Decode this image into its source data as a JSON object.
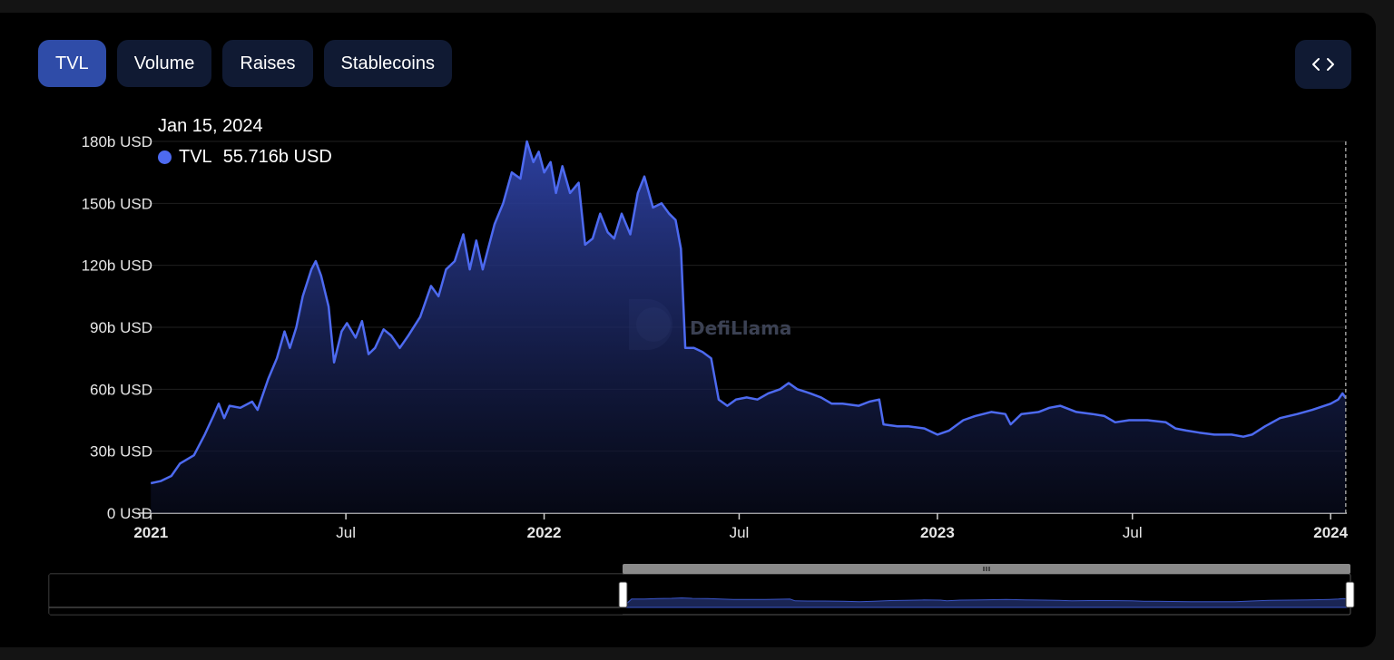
{
  "tabs": [
    {
      "label": "TVL",
      "active": true
    },
    {
      "label": "Volume",
      "active": false
    },
    {
      "label": "Raises",
      "active": false
    },
    {
      "label": "Stablecoins",
      "active": false
    }
  ],
  "embed_icon": "code-brackets-icon",
  "watermark": "DefiLlama",
  "tooltip": {
    "date": "Jan 15, 2024",
    "series": "TVL",
    "value": "55.716b USD"
  },
  "colors": {
    "line": "#4d6af0",
    "tab_active": "#2f4ca8",
    "tab_inactive": "#101a33",
    "background": "#000000"
  },
  "chart_data": {
    "type": "area",
    "series": [
      {
        "name": "TVL",
        "points": [
          [
            "2021-01-01",
            14.5
          ],
          [
            "2021-01-10",
            15.5
          ],
          [
            "2021-01-20",
            18
          ],
          [
            "2021-01-28",
            24
          ],
          [
            "2021-02-10",
            28
          ],
          [
            "2021-02-20",
            38
          ],
          [
            "2021-02-28",
            47
          ],
          [
            "2021-03-05",
            53
          ],
          [
            "2021-03-10",
            46
          ],
          [
            "2021-03-15",
            52
          ],
          [
            "2021-03-25",
            51
          ],
          [
            "2021-04-05",
            54
          ],
          [
            "2021-04-10",
            50
          ],
          [
            "2021-04-20",
            65
          ],
          [
            "2021-04-28",
            75
          ],
          [
            "2021-05-05",
            88
          ],
          [
            "2021-05-10",
            80
          ],
          [
            "2021-05-16",
            90
          ],
          [
            "2021-05-22",
            105
          ],
          [
            "2021-05-30",
            118
          ],
          [
            "2021-06-03",
            122
          ],
          [
            "2021-06-08",
            115
          ],
          [
            "2021-06-15",
            100
          ],
          [
            "2021-06-20",
            73
          ],
          [
            "2021-06-27",
            88
          ],
          [
            "2021-07-02",
            92
          ],
          [
            "2021-07-10",
            85
          ],
          [
            "2021-07-16",
            93
          ],
          [
            "2021-07-22",
            77
          ],
          [
            "2021-07-28",
            80
          ],
          [
            "2021-08-05",
            89
          ],
          [
            "2021-08-12",
            86
          ],
          [
            "2021-08-20",
            80
          ],
          [
            "2021-08-28",
            86
          ],
          [
            "2021-09-08",
            95
          ],
          [
            "2021-09-18",
            110
          ],
          [
            "2021-09-25",
            105
          ],
          [
            "2021-10-02",
            118
          ],
          [
            "2021-10-10",
            122
          ],
          [
            "2021-10-18",
            135
          ],
          [
            "2021-10-24",
            118
          ],
          [
            "2021-10-30",
            132
          ],
          [
            "2021-11-05",
            118
          ],
          [
            "2021-11-10",
            128
          ],
          [
            "2021-11-16",
            140
          ],
          [
            "2021-11-24",
            150
          ],
          [
            "2021-12-02",
            165
          ],
          [
            "2021-12-10",
            162
          ],
          [
            "2021-12-16",
            180
          ],
          [
            "2021-12-22",
            170
          ],
          [
            "2021-12-27",
            175
          ],
          [
            "2022-01-01",
            165
          ],
          [
            "2022-01-07",
            170
          ],
          [
            "2022-01-12",
            155
          ],
          [
            "2022-01-18",
            168
          ],
          [
            "2022-01-25",
            155
          ],
          [
            "2022-02-02",
            160
          ],
          [
            "2022-02-08",
            130
          ],
          [
            "2022-02-15",
            133
          ],
          [
            "2022-02-22",
            145
          ],
          [
            "2022-03-01",
            136
          ],
          [
            "2022-03-07",
            133
          ],
          [
            "2022-03-14",
            145
          ],
          [
            "2022-03-22",
            135
          ],
          [
            "2022-03-29",
            155
          ],
          [
            "2022-04-04",
            163
          ],
          [
            "2022-04-12",
            148
          ],
          [
            "2022-04-20",
            150
          ],
          [
            "2022-04-27",
            145
          ],
          [
            "2022-05-03",
            142
          ],
          [
            "2022-05-08",
            128
          ],
          [
            "2022-05-12",
            80
          ],
          [
            "2022-05-20",
            80
          ],
          [
            "2022-05-28",
            78
          ],
          [
            "2022-06-05",
            75
          ],
          [
            "2022-06-12",
            55
          ],
          [
            "2022-06-20",
            52
          ],
          [
            "2022-06-28",
            55
          ],
          [
            "2022-07-08",
            56
          ],
          [
            "2022-07-18",
            55
          ],
          [
            "2022-07-28",
            58
          ],
          [
            "2022-08-08",
            60
          ],
          [
            "2022-08-16",
            63
          ],
          [
            "2022-08-24",
            60
          ],
          [
            "2022-09-05",
            58
          ],
          [
            "2022-09-15",
            56
          ],
          [
            "2022-09-25",
            53
          ],
          [
            "2022-10-05",
            53
          ],
          [
            "2022-10-20",
            52
          ],
          [
            "2022-10-30",
            54
          ],
          [
            "2022-11-08",
            55
          ],
          [
            "2022-11-12",
            43
          ],
          [
            "2022-11-25",
            42
          ],
          [
            "2022-12-05",
            42
          ],
          [
            "2022-12-20",
            41
          ],
          [
            "2023-01-01",
            38
          ],
          [
            "2023-01-12",
            40
          ],
          [
            "2023-01-25",
            45
          ],
          [
            "2023-02-05",
            47
          ],
          [
            "2023-02-20",
            49
          ],
          [
            "2023-03-05",
            48
          ],
          [
            "2023-03-10",
            43
          ],
          [
            "2023-03-20",
            48
          ],
          [
            "2023-04-05",
            49
          ],
          [
            "2023-04-15",
            51
          ],
          [
            "2023-04-25",
            52
          ],
          [
            "2023-05-10",
            49
          ],
          [
            "2023-05-25",
            48
          ],
          [
            "2023-06-05",
            47
          ],
          [
            "2023-06-15",
            44
          ],
          [
            "2023-06-28",
            45
          ],
          [
            "2023-07-15",
            45
          ],
          [
            "2023-08-01",
            44
          ],
          [
            "2023-08-10",
            41
          ],
          [
            "2023-08-20",
            40
          ],
          [
            "2023-09-01",
            39
          ],
          [
            "2023-09-15",
            38
          ],
          [
            "2023-10-01",
            38
          ],
          [
            "2023-10-12",
            37
          ],
          [
            "2023-10-20",
            38
          ],
          [
            "2023-11-01",
            42
          ],
          [
            "2023-11-15",
            46
          ],
          [
            "2023-12-01",
            48
          ],
          [
            "2023-12-15",
            50
          ],
          [
            "2024-01-01",
            53
          ],
          [
            "2024-01-08",
            55
          ],
          [
            "2024-01-12",
            58
          ],
          [
            "2024-01-15",
            55.716
          ]
        ]
      }
    ],
    "y_ticks": [
      "0 USD",
      "30b USD",
      "60b USD",
      "90b USD",
      "120b USD",
      "150b USD",
      "180b USD"
    ],
    "y_tick_values": [
      0,
      30,
      60,
      90,
      120,
      150,
      180
    ],
    "ylim": [
      0,
      180
    ],
    "x_ticks": [
      {
        "label": "2021",
        "date": "2021-01-01",
        "bold": true
      },
      {
        "label": "Jul",
        "date": "2021-07-01",
        "bold": false
      },
      {
        "label": "2022",
        "date": "2022-01-01",
        "bold": true
      },
      {
        "label": "Jul",
        "date": "2022-07-01",
        "bold": false
      },
      {
        "label": "2023",
        "date": "2023-01-01",
        "bold": true
      },
      {
        "label": "Jul",
        "date": "2023-07-01",
        "bold": false
      },
      {
        "label": "2024",
        "date": "2024-01-01",
        "bold": true
      }
    ],
    "xlim": [
      "2020-12-20",
      "2024-01-16"
    ],
    "grid": "horizontal",
    "hover_date": "2024-01-15"
  }
}
